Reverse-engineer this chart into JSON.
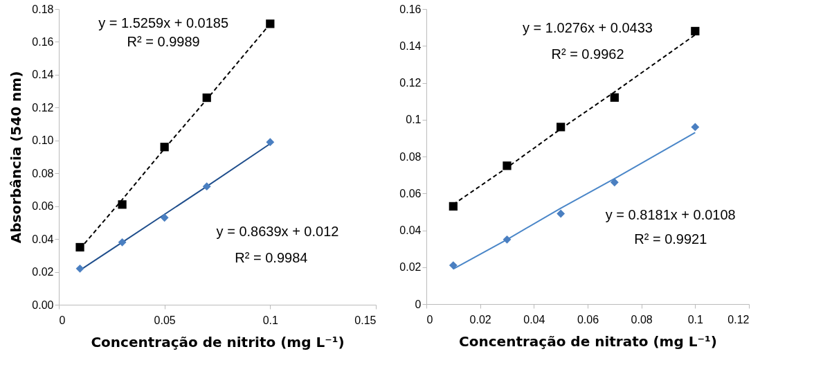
{
  "chart_data": [
    {
      "type": "scatter",
      "xlabel": "Concentração de nitrito (mg L⁻¹)",
      "ylabel": "Absorbância (540 nm)",
      "x": [
        0.01,
        0.03,
        0.05,
        0.07,
        0.1
      ],
      "xlim": [
        0,
        0.15
      ],
      "xticks": [
        0,
        0.05,
        0.1,
        0.15
      ],
      "ylim": [
        0,
        0.18
      ],
      "yticks": [
        {
          "value": 0,
          "label": "0.00"
        },
        {
          "value": 0.02,
          "label": "0.02"
        },
        {
          "value": 0.04,
          "label": "0.04"
        },
        {
          "value": 0.06,
          "label": "0.06"
        },
        {
          "value": 0.08,
          "label": "0.08"
        },
        {
          "value": 0.1,
          "label": "0.10"
        },
        {
          "value": 0.12,
          "label": "0.12"
        },
        {
          "value": 0.14,
          "label": "0.14"
        },
        {
          "value": 0.16,
          "label": "0.16"
        },
        {
          "value": 0.18,
          "label": "0.18"
        }
      ],
      "grid": false,
      "series": [
        {
          "type": "line",
          "values": [
            0.034,
            0.064,
            0.095,
            0.125,
            0.171
          ],
          "color": "#000000",
          "line_style": "dashed"
        },
        {
          "type": "line",
          "values": [
            0.021,
            0.038,
            0.055,
            0.072,
            0.098
          ],
          "color": "#1f4e8c",
          "line_style": "solid"
        },
        {
          "type": "scatter",
          "color": "#000000",
          "marker": "square",
          "values": [
            0.035,
            0.061,
            0.096,
            0.126,
            0.171
          ]
        },
        {
          "type": "scatter",
          "color": "#4a7fc1",
          "marker": "diamond",
          "values": [
            0.022,
            0.038,
            0.053,
            0.072,
            0.099
          ]
        }
      ],
      "annotations": [
        "y = 1.5259x + 0.0185",
        "R² = 0.9989",
        "y = 0.8639x + 0.012",
        "R² = 0.9984"
      ]
    },
    {
      "type": "scatter",
      "xlabel": "Concentração de nitrato (mg L⁻¹)",
      "x": [
        0.01,
        0.03,
        0.05,
        0.07,
        0.1
      ],
      "xlim": [
        0,
        0.12
      ],
      "xticks": [
        0,
        0.02,
        0.04,
        0.06,
        0.08,
        0.1,
        0.12
      ],
      "ylim": [
        0,
        0.16
      ],
      "yticks": [
        0,
        0.02,
        0.04,
        0.06,
        0.08,
        0.1,
        0.12,
        0.14,
        0.16
      ],
      "grid": false,
      "series": [
        {
          "type": "line",
          "values": [
            0.054,
            0.074,
            0.095,
            0.115,
            0.146
          ],
          "color": "#000000",
          "line_style": "dashed"
        },
        {
          "type": "line",
          "values": [
            0.019,
            0.035,
            0.052,
            0.068,
            0.093
          ],
          "color": "#4a86c8",
          "line_style": "solid"
        },
        {
          "type": "scatter",
          "color": "#000000",
          "marker": "square",
          "values": [
            0.053,
            0.075,
            0.096,
            0.112,
            0.148
          ]
        },
        {
          "type": "scatter",
          "color": "#4a7fc1",
          "marker": "diamond",
          "values": [
            0.021,
            0.035,
            0.049,
            0.066,
            0.096
          ]
        }
      ],
      "annotations": [
        "y = 1.0276x + 0.0433",
        "R² = 0.9962",
        "y = 0.8181x + 0.0108",
        "R² = 0.9921"
      ]
    }
  ]
}
